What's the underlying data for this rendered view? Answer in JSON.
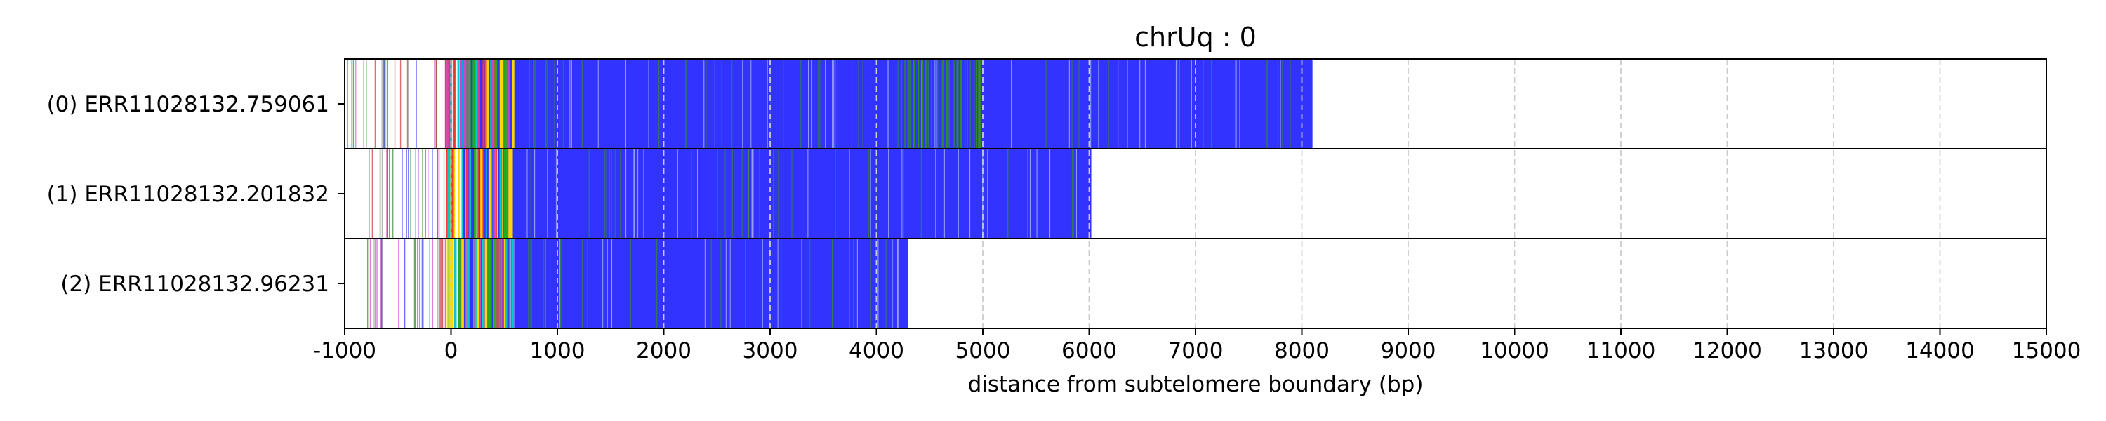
{
  "chart_data": {
    "type": "bar",
    "orientation": "horizontal",
    "title": "chrUq : 0",
    "xlabel": "distance from subtelomere boundary (bp)",
    "ylabel": "",
    "xlim": [
      -1000,
      15000
    ],
    "xticks": [
      -1000,
      0,
      1000,
      2000,
      3000,
      4000,
      5000,
      6000,
      7000,
      8000,
      9000,
      10000,
      11000,
      12000,
      13000,
      14000,
      15000
    ],
    "tick_labels": [
      "-1000",
      "0",
      "1000",
      "2000",
      "3000",
      "4000",
      "5000",
      "6000",
      "7000",
      "8000",
      "9000",
      "10000",
      "11000",
      "12000",
      "13000",
      "14000",
      "15000"
    ],
    "grid": "vertical dashed",
    "legend": "none",
    "colors": {
      "bulk": "#3333ff",
      "sparse_lines": [
        "#2e8b2e",
        "#cc3333",
        "#999999",
        "#3333ff",
        "#cc44cc"
      ],
      "hot_zone": [
        "#ffd700",
        "#ff3333",
        "#22aa22",
        "#00cccc",
        "#cc44cc"
      ],
      "dense_green": "#2e8b2e",
      "grid": "#cccccc"
    },
    "reads": [
      {
        "label": "(0) ERR11028132.759061",
        "start": -1000,
        "bulk_start": 100,
        "end": 8100
      },
      {
        "label": "(1) ERR11028132.201832",
        "start": -800,
        "bulk_start": 100,
        "end": 6020
      },
      {
        "label": "(2) ERR11028132.96231",
        "start": -800,
        "bulk_start": 100,
        "end": 4300
      }
    ]
  }
}
